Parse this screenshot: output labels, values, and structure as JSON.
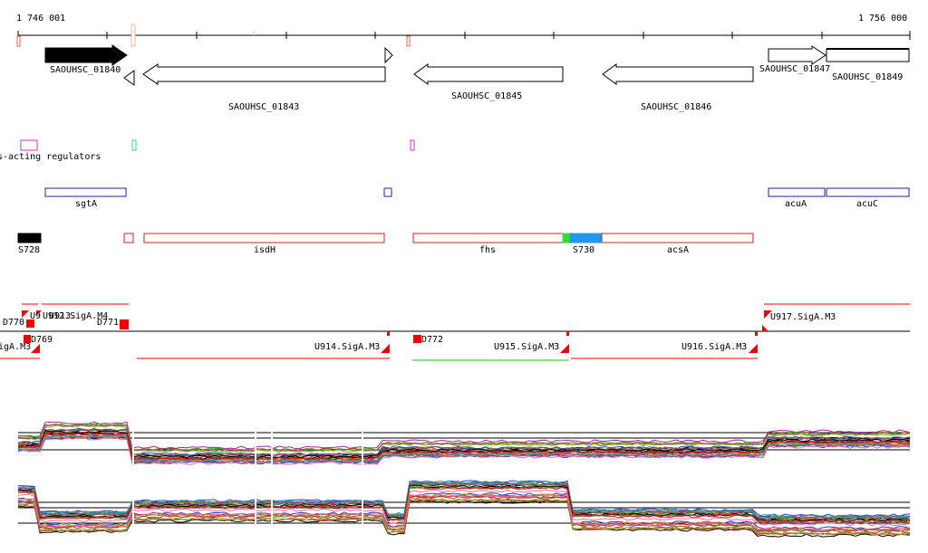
{
  "ruler": {
    "start_label": "1 746 001",
    "end_label": "1 756 000",
    "start_bp": 1746001,
    "end_bp": 1756000
  },
  "genes": [
    {
      "id": "SAOUHSC_01840",
      "label": "SAOUHSC_01840",
      "strand": "+",
      "filled": true
    },
    {
      "id": "SAOUHSC_01843",
      "label": "SAOUHSC_01843",
      "strand": "-",
      "filled": false
    },
    {
      "id": "SAOUHSC_01845",
      "label": "SAOUHSC_01845",
      "strand": "-",
      "filled": false
    },
    {
      "id": "SAOUHSC_01846",
      "label": "SAOUHSC_01846",
      "strand": "-",
      "filled": false
    },
    {
      "id": "SAOUHSC_01847",
      "label": "SAOUHSC_01847",
      "strand": "+",
      "filled": false
    },
    {
      "id": "SAOUHSC_01849",
      "label": "SAOUHSC_01849",
      "strand": "+",
      "filled": false
    }
  ],
  "regulators": {
    "label": "s-acting regulators"
  },
  "gene_names": [
    {
      "label": "sgtA"
    },
    {
      "label": "acuA"
    },
    {
      "label": "acuC"
    }
  ],
  "annotations": [
    {
      "label": "S728",
      "color": "#000000"
    },
    {
      "label": "isdH",
      "color": "#cc2222"
    },
    {
      "label": "fhs",
      "color": "#cc2222"
    },
    {
      "label": "S730",
      "color": "#2299ee"
    },
    {
      "label": "acsA",
      "color": "#cc2222"
    }
  ],
  "transcripts": {
    "upper_labels": [
      "U9",
      "U913.",
      "U912.SigA.M4",
      "U917.SigA.M3"
    ],
    "mid_labels": [
      "D770",
      "D771",
      "D769",
      "D772"
    ],
    "lower_labels": [
      "igA.M3",
      "U914.SigA.M3",
      "U915.SigA.M3",
      "U916.SigA.M3"
    ]
  },
  "colors": {
    "forward_gene": "#000000",
    "annotation_outline": "#cc2222",
    "regulator_outline": "#cc33cc",
    "gene_name_outline": "#22229a",
    "transcript_red": "#ee0000",
    "transcript_green": "#22bb22",
    "s730_green": "#33dd33",
    "s730_blue": "#2299ee"
  }
}
